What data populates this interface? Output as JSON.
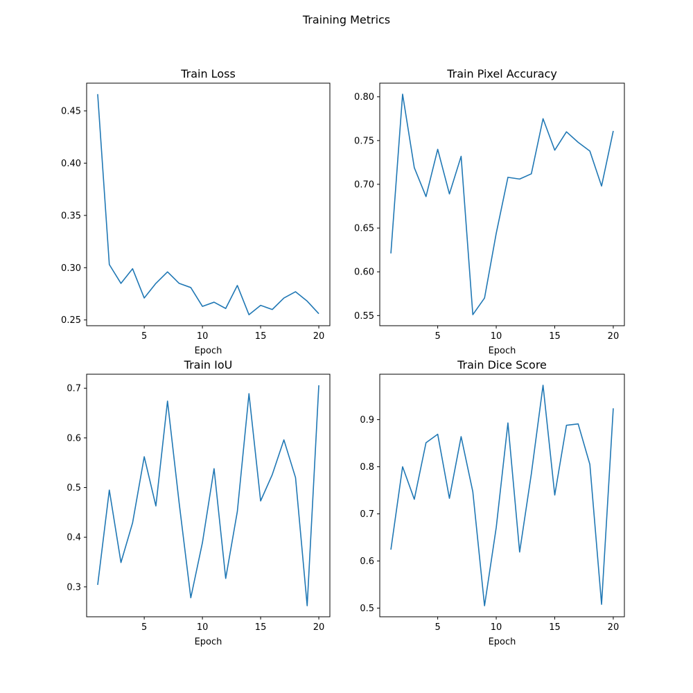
{
  "figure_title": "Training Metrics",
  "line_color": "#1f77b4",
  "chart_data": [
    {
      "type": "line",
      "title": "Train Loss",
      "xlabel": "Epoch",
      "ylabel": "",
      "x": [
        1,
        2,
        3,
        4,
        5,
        6,
        7,
        8,
        9,
        10,
        11,
        12,
        13,
        14,
        15,
        16,
        17,
        18,
        19,
        20
      ],
      "values": [
        0.466,
        0.303,
        0.285,
        0.299,
        0.271,
        0.285,
        0.296,
        0.285,
        0.281,
        0.263,
        0.267,
        0.261,
        0.283,
        0.255,
        0.264,
        0.26,
        0.271,
        0.277,
        0.268,
        0.256
      ],
      "xlim": [
        0.05,
        20.95
      ],
      "ylim": [
        0.2445,
        0.4765
      ],
      "xticks": [
        5,
        10,
        15,
        20
      ],
      "yticks": [
        0.25,
        0.3,
        0.35,
        0.4,
        0.45
      ],
      "ytick_labels": [
        "0.25",
        "0.30",
        "0.35",
        "0.40",
        "0.45"
      ]
    },
    {
      "type": "line",
      "title": "Train Pixel Accuracy",
      "xlabel": "Epoch",
      "ylabel": "",
      "x": [
        1,
        2,
        3,
        4,
        5,
        6,
        7,
        8,
        9,
        10,
        11,
        12,
        13,
        14,
        15,
        16,
        17,
        18,
        19,
        20
      ],
      "values": [
        0.621,
        0.803,
        0.719,
        0.686,
        0.74,
        0.689,
        0.732,
        0.551,
        0.57,
        0.644,
        0.708,
        0.706,
        0.712,
        0.775,
        0.739,
        0.76,
        0.748,
        0.738,
        0.698,
        0.761
      ],
      "xlim": [
        0.05,
        20.95
      ],
      "ylim": [
        0.5384,
        0.8156
      ],
      "xticks": [
        5,
        10,
        15,
        20
      ],
      "yticks": [
        0.55,
        0.6,
        0.65,
        0.7,
        0.75,
        0.8
      ],
      "ytick_labels": [
        "0.55",
        "0.60",
        "0.65",
        "0.70",
        "0.75",
        "0.80"
      ]
    },
    {
      "type": "line",
      "title": "Train IoU",
      "xlabel": "Epoch",
      "ylabel": "",
      "x": [
        1,
        2,
        3,
        4,
        5,
        6,
        7,
        8,
        9,
        10,
        11,
        12,
        13,
        14,
        15,
        16,
        17,
        18,
        19,
        20
      ],
      "values": [
        0.304,
        0.495,
        0.349,
        0.429,
        0.562,
        0.463,
        0.674,
        0.469,
        0.278,
        0.389,
        0.538,
        0.317,
        0.452,
        0.689,
        0.473,
        0.526,
        0.596,
        0.52,
        0.262,
        0.706
      ],
      "xlim": [
        0.05,
        20.95
      ],
      "ylim": [
        0.2398,
        0.7282
      ],
      "xticks": [
        5,
        10,
        15,
        20
      ],
      "yticks": [
        0.3,
        0.4,
        0.5,
        0.6,
        0.7
      ],
      "ytick_labels": [
        "0.3",
        "0.4",
        "0.5",
        "0.6",
        "0.7"
      ]
    },
    {
      "type": "line",
      "title": "Train Dice Score",
      "xlabel": "Epoch",
      "ylabel": "",
      "x": [
        1,
        2,
        3,
        4,
        5,
        6,
        7,
        8,
        9,
        10,
        11,
        12,
        13,
        14,
        15,
        16,
        17,
        18,
        19,
        20
      ],
      "values": [
        0.624,
        0.8,
        0.731,
        0.851,
        0.869,
        0.733,
        0.864,
        0.747,
        0.505,
        0.671,
        0.893,
        0.619,
        0.785,
        0.973,
        0.74,
        0.888,
        0.891,
        0.805,
        0.508,
        0.924
      ],
      "xlim": [
        0.05,
        20.95
      ],
      "ylim": [
        0.4816,
        0.9964
      ],
      "xticks": [
        5,
        10,
        15,
        20
      ],
      "yticks": [
        0.5,
        0.6,
        0.7,
        0.8,
        0.9
      ],
      "ytick_labels": [
        "0.5",
        "0.6",
        "0.7",
        "0.8",
        "0.9"
      ]
    }
  ]
}
